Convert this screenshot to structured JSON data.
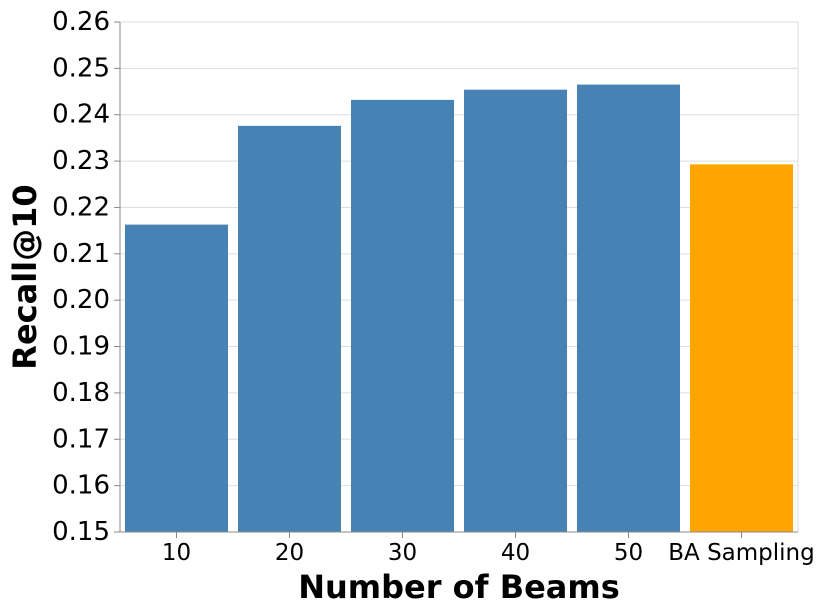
{
  "chart_data": {
    "type": "bar",
    "categories": [
      "10",
      "20",
      "30",
      "40",
      "50",
      "BA Sampling"
    ],
    "values": [
      0.2163,
      0.2376,
      0.2432,
      0.2454,
      0.2465,
      0.2293
    ],
    "colors": [
      "#4682b4",
      "#4682b4",
      "#4682b4",
      "#4682b4",
      "#4682b4",
      "#ffa500"
    ],
    "xlabel": "Number of Beams",
    "ylabel": "Recall@10",
    "ylim": [
      0.15,
      0.26
    ],
    "yticks": [
      "0.15",
      "0.16",
      "0.17",
      "0.18",
      "0.19",
      "0.20",
      "0.21",
      "0.22",
      "0.23",
      "0.24",
      "0.25",
      "0.26"
    ],
    "grid": true,
    "legend": "none"
  }
}
